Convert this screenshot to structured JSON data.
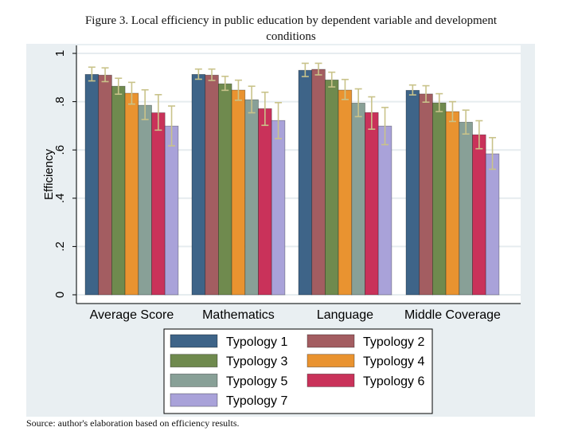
{
  "figure": {
    "title_line1": "Figure 3. Local efficiency in public education by dependent variable and development",
    "title_line2": "conditions",
    "source": "Source: author's elaboration based on efficiency results."
  },
  "chart_data": {
    "type": "bar",
    "title": "Figure 3. Local efficiency in public education by dependent variable and development conditions",
    "xlabel": "",
    "ylabel": "Efficiency",
    "ylim": [
      0,
      1
    ],
    "yticks": [
      0,
      0.2,
      0.4,
      0.6,
      0.8,
      1
    ],
    "ytick_labels": [
      "0",
      ".2",
      ".4",
      ".6",
      ".8",
      "1"
    ],
    "grid": true,
    "error_bars": true,
    "legend_position": "bottom",
    "categories": [
      "Average Score",
      "Mathematics",
      "Language",
      "Middle Coverage"
    ],
    "series": [
      {
        "name": "Typology 1",
        "color": "#3e6488",
        "values": [
          0.913,
          0.913,
          0.93,
          0.847
        ],
        "ci_low": [
          0.886,
          0.893,
          0.904,
          0.828
        ],
        "ci_high": [
          0.943,
          0.935,
          0.959,
          0.869
        ]
      },
      {
        "name": "Typology 2",
        "color": "#a35d61",
        "values": [
          0.91,
          0.91,
          0.934,
          0.832
        ],
        "ci_low": [
          0.883,
          0.888,
          0.911,
          0.798
        ],
        "ci_high": [
          0.94,
          0.935,
          0.959,
          0.866
        ]
      },
      {
        "name": "Typology 3",
        "color": "#6f8a4e",
        "values": [
          0.864,
          0.874,
          0.89,
          0.795
        ],
        "ci_low": [
          0.831,
          0.847,
          0.861,
          0.759
        ],
        "ci_high": [
          0.897,
          0.905,
          0.922,
          0.833
        ]
      },
      {
        "name": "Typology 4",
        "color": "#e99330",
        "values": [
          0.835,
          0.848,
          0.848,
          0.759
        ],
        "ci_low": [
          0.79,
          0.806,
          0.809,
          0.718
        ],
        "ci_high": [
          0.88,
          0.889,
          0.892,
          0.8
        ]
      },
      {
        "name": "Typology 5",
        "color": "#88a097",
        "values": [
          0.785,
          0.808,
          0.794,
          0.715
        ],
        "ci_low": [
          0.726,
          0.754,
          0.738,
          0.666
        ],
        "ci_high": [
          0.849,
          0.864,
          0.853,
          0.765
        ]
      },
      {
        "name": "Typology 6",
        "color": "#c9325a",
        "values": [
          0.754,
          0.771,
          0.755,
          0.663
        ],
        "ci_low": [
          0.682,
          0.702,
          0.686,
          0.605
        ],
        "ci_high": [
          0.829,
          0.839,
          0.82,
          0.721
        ]
      },
      {
        "name": "Typology 7",
        "color": "#a9a2d9",
        "values": [
          0.699,
          0.722,
          0.699,
          0.584
        ],
        "ci_low": [
          0.617,
          0.647,
          0.622,
          0.52
        ],
        "ci_high": [
          0.782,
          0.796,
          0.776,
          0.651
        ]
      }
    ],
    "colors": {
      "outer_background": "#e9eff2",
      "plot_background": "#ffffff",
      "gridline": "#e6ecef",
      "error_bar": "#c9c38a",
      "axis": "#000000"
    }
  }
}
